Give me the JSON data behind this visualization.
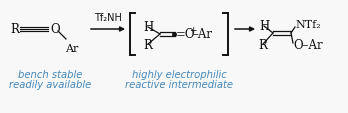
{
  "bg_color": "#e8e8e8",
  "box_color": "#f8f8f8",
  "box_edge": "#aabbcc",
  "text_color": "#111111",
  "blue_color": "#4488bb",
  "figsize": [
    3.48,
    1.14
  ],
  "dpi": 100,
  "labels": {
    "reagent": "Tf₂NH",
    "label1a": "bench stable",
    "label1b": "readily available",
    "label2a": "highly electrophilic",
    "label2b": "reactive intermediate"
  }
}
